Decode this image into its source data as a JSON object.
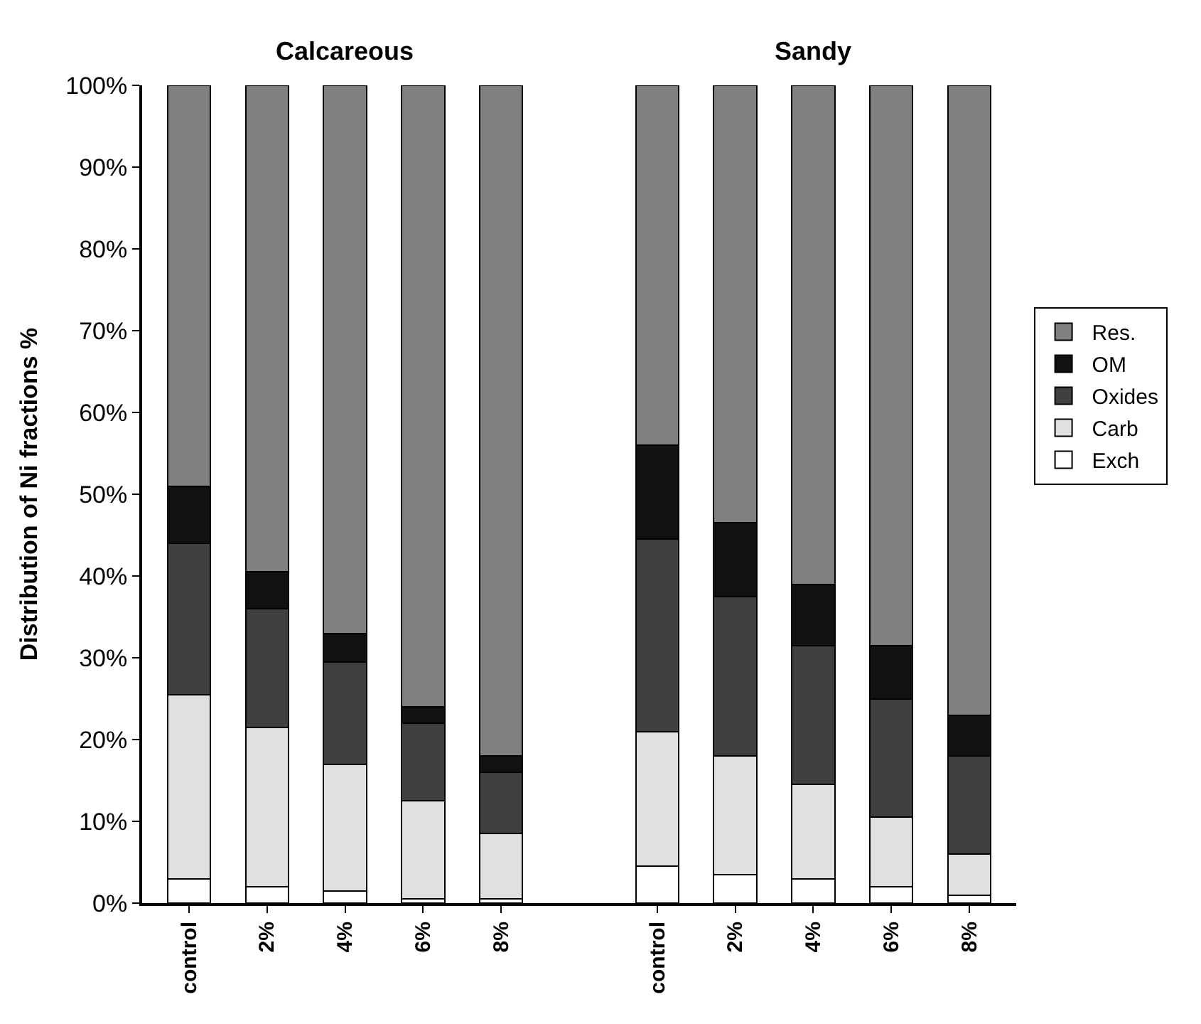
{
  "chart_data": {
    "type": "bar",
    "stacked": true,
    "ylabel": "Distribution of Ni fractions %",
    "annotations": [
      "Calcareous",
      "Sandy"
    ],
    "categories": [
      "control",
      "2%",
      "4%",
      "6%",
      "8%",
      null,
      "control",
      "2%",
      "4%",
      "6%",
      "8%"
    ],
    "ylim": [
      0,
      100
    ],
    "yticks": [
      {
        "value": 0,
        "label": "0%"
      },
      {
        "value": 10,
        "label": "10%"
      },
      {
        "value": 20,
        "label": "20%"
      },
      {
        "value": 30,
        "label": "30%"
      },
      {
        "value": 40,
        "label": "40%"
      },
      {
        "value": 50,
        "label": "50%"
      },
      {
        "value": 60,
        "label": "60%"
      },
      {
        "value": 70,
        "label": "70%"
      },
      {
        "value": 80,
        "label": "80%"
      },
      {
        "value": 90,
        "label": "90%"
      },
      {
        "value": 100,
        "label": "100%"
      }
    ],
    "legend": "right",
    "series": [
      {
        "name": "Exch",
        "color": "#ffffff",
        "values": [
          3,
          2,
          1.5,
          0.5,
          0.5,
          null,
          4.5,
          3.5,
          3,
          2,
          1
        ]
      },
      {
        "name": "Carb",
        "color": "#e0e0e0",
        "values": [
          22.5,
          19.5,
          15.5,
          12,
          8,
          null,
          16.5,
          14.5,
          11.5,
          8.5,
          5
        ]
      },
      {
        "name": "Oxides",
        "color": "#404040",
        "values": [
          18.5,
          14.5,
          12.5,
          9.5,
          7.5,
          null,
          23.5,
          19.5,
          17,
          14.5,
          12
        ]
      },
      {
        "name": "OM",
        "color": "#111111",
        "values": [
          7,
          4.5,
          3.5,
          2,
          2,
          null,
          11.5,
          9,
          7.5,
          6.5,
          5
        ]
      },
      {
        "name": "Res.",
        "color": "#808080",
        "values": [
          49,
          59.5,
          67,
          76,
          82,
          null,
          44,
          53.5,
          61,
          68.5,
          77
        ]
      }
    ]
  }
}
